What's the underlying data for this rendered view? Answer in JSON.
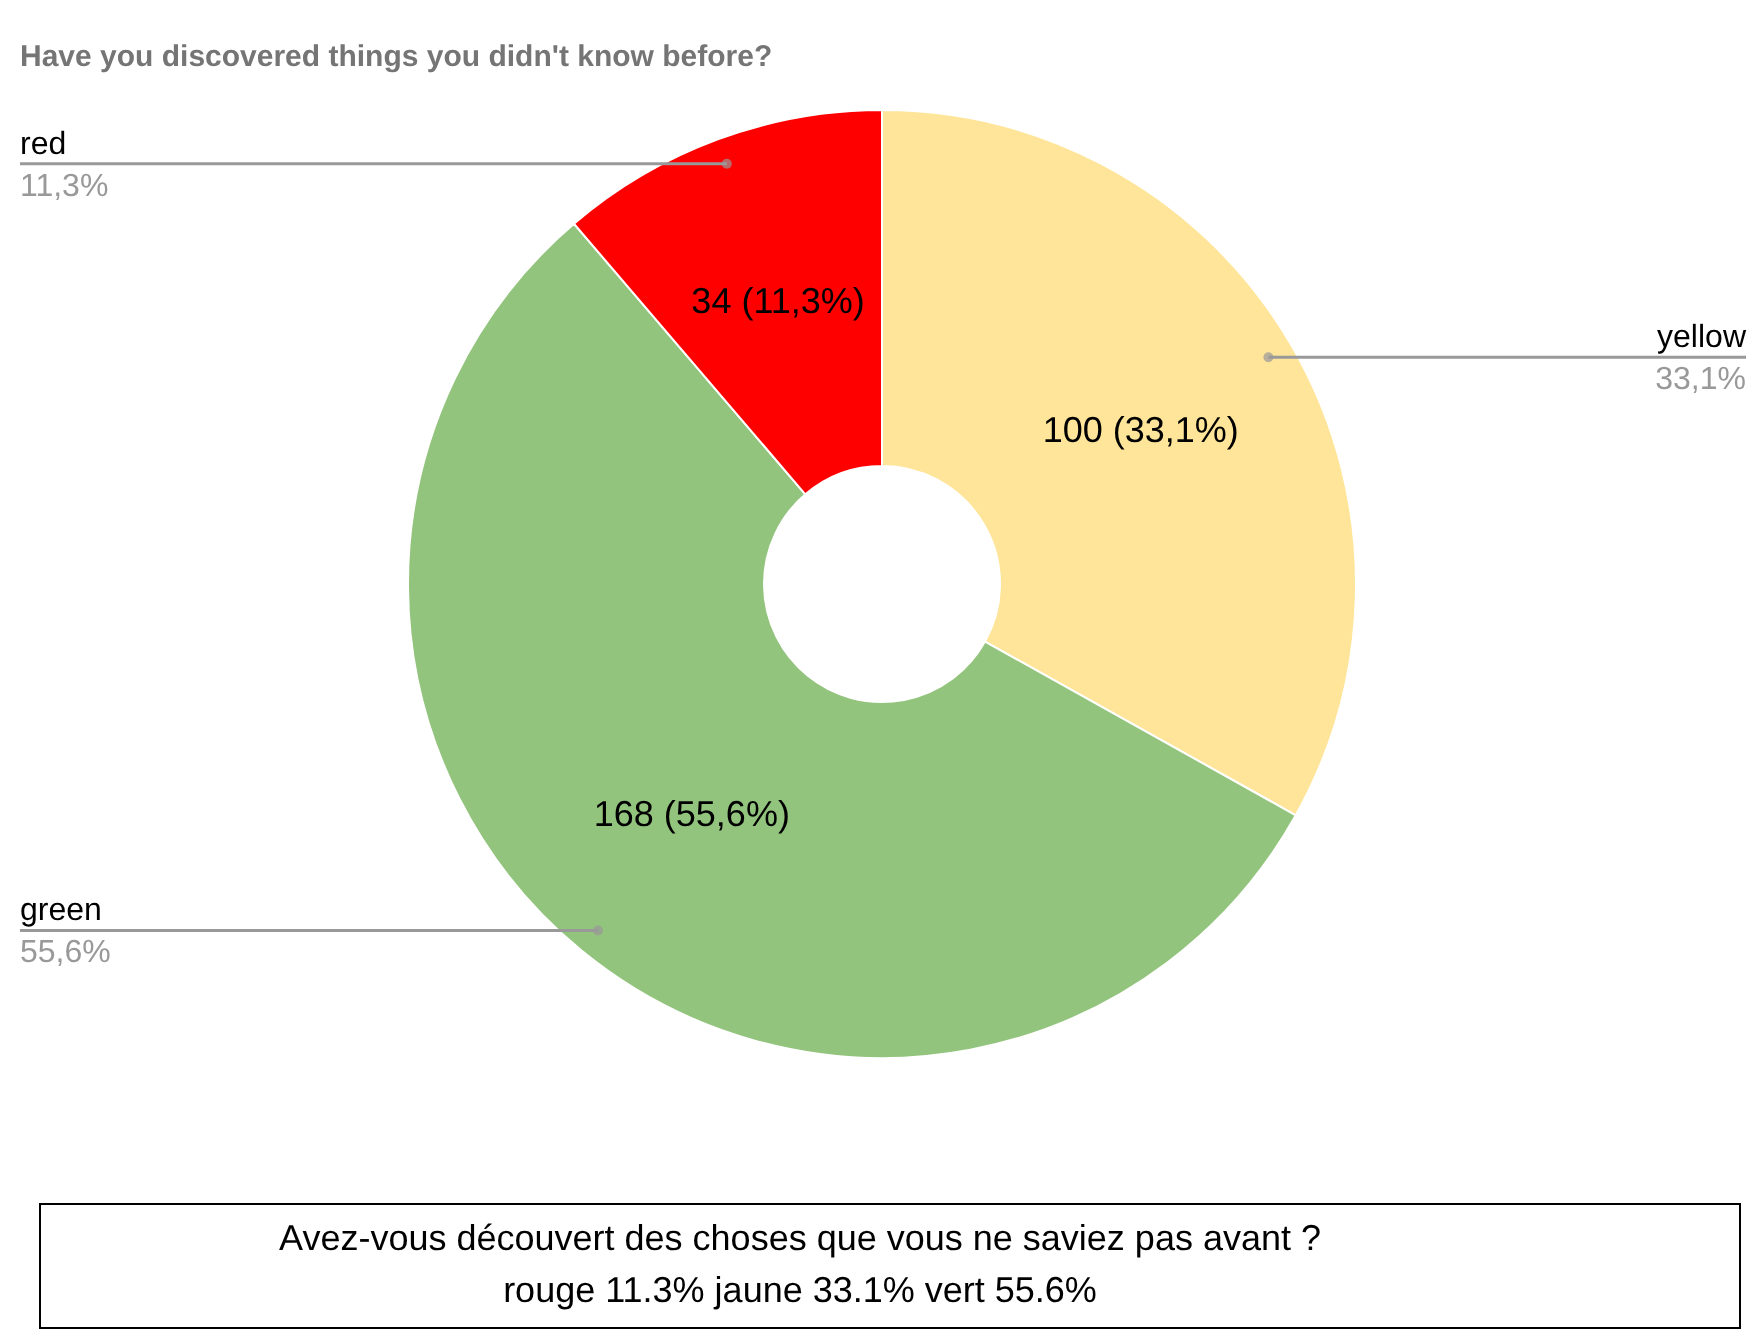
{
  "chart_data": {
    "type": "donut",
    "title": "Have you discovered things you didn't know before?",
    "categories": [
      "yellow",
      "green",
      "red"
    ],
    "values": [
      100,
      168,
      34
    ],
    "colors": [
      "#ffe599",
      "#93c47d",
      "#ff0000"
    ],
    "value_labels": [
      "100 (33,1%)",
      "168 (55,6%)",
      "34 (11,3%)"
    ],
    "annotations": [
      {
        "text": "33,1%",
        "x": "yellow"
      },
      {
        "text": "55,6%",
        "x": "green"
      },
      {
        "text": "11,3%",
        "x": "red"
      },
      "Avez-vous découvert des choses que vous ne saviez pas avant ?",
      "rouge 11.3% jaune 33.1% vert 55.6%"
    ]
  }
}
